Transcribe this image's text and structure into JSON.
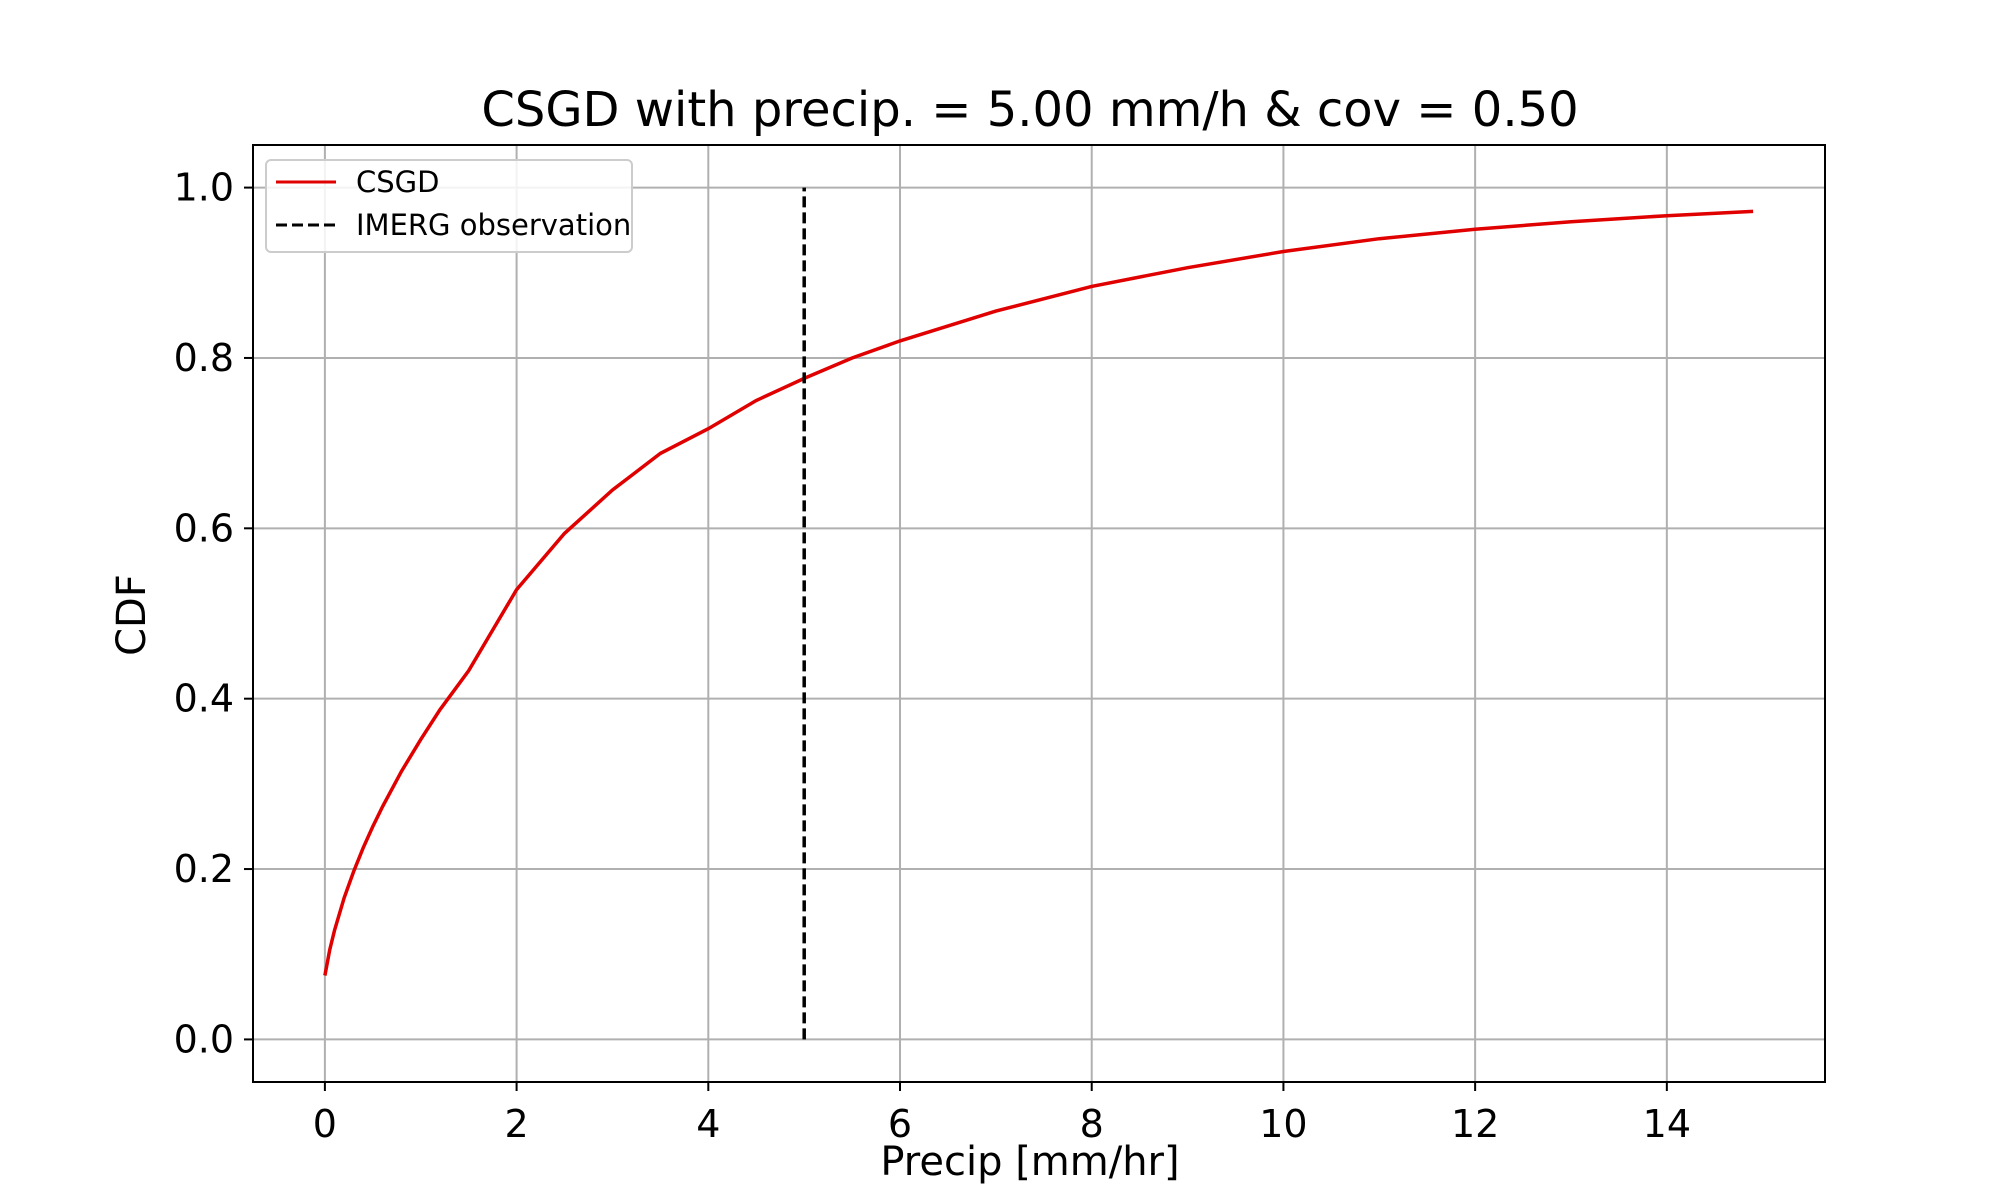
{
  "chart_data": {
    "type": "line",
    "title": "CSGD with precip. = 5.00 mm/h & cov = 0.50",
    "xlabel": "Precip [mm/hr]",
    "ylabel": "CDF",
    "xlim": [
      -0.75,
      15.65
    ],
    "ylim": [
      -0.05,
      1.05
    ],
    "xticks": [
      0,
      2,
      4,
      6,
      8,
      10,
      12,
      14
    ],
    "xtick_labels": [
      "0",
      "2",
      "4",
      "6",
      "8",
      "10",
      "12",
      "14"
    ],
    "yticks": [
      0.0,
      0.2,
      0.4,
      0.6,
      0.8,
      1.0
    ],
    "ytick_labels": [
      "0.0",
      "0.2",
      "0.4",
      "0.6",
      "0.8",
      "1.0"
    ],
    "grid": true,
    "legend_position": "top-left",
    "series": [
      {
        "name": "CSGD",
        "color": "#e00000",
        "style": "solid",
        "x": [
          0,
          0.05,
          0.1,
          0.2,
          0.3,
          0.4,
          0.5,
          0.6,
          0.8,
          1.0,
          1.2,
          1.5,
          2.0,
          2.5,
          3.0,
          3.5,
          4.0,
          4.5,
          5.0,
          5.5,
          6.0,
          7.0,
          8.0,
          9.0,
          10.0,
          11.0,
          12.0,
          13.0,
          14.0,
          14.9
        ],
        "y": [
          0.075,
          0.105,
          0.128,
          0.166,
          0.197,
          0.225,
          0.25,
          0.273,
          0.315,
          0.352,
          0.387,
          0.433,
          0.528,
          0.594,
          0.645,
          0.688,
          0.717,
          0.75,
          0.776,
          0.8,
          0.82,
          0.855,
          0.884,
          0.906,
          0.925,
          0.94,
          0.951,
          0.96,
          0.967,
          0.972
        ]
      },
      {
        "name": "IMERG observation",
        "color": "#000000",
        "style": "dashed",
        "x": [
          5.0,
          5.0
        ],
        "y": [
          0.0,
          1.0
        ]
      }
    ]
  }
}
